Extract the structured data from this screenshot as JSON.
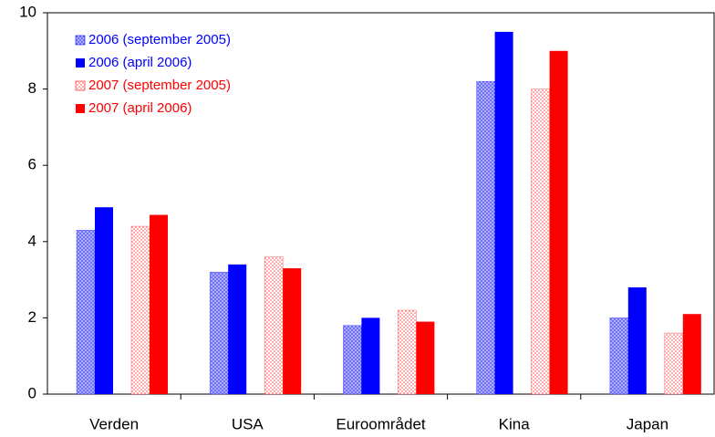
{
  "chart_data": {
    "type": "bar",
    "categories": [
      "Verden",
      "USA",
      "Euroområdet",
      "Kina",
      "Japan"
    ],
    "series": [
      {
        "name": "2006 (september 2005)",
        "color": "#0000ff",
        "pattern": "crosshatch",
        "values": [
          4.3,
          3.2,
          1.8,
          8.2,
          2.0
        ]
      },
      {
        "name": "2006 (april 2006)",
        "color": "#0000ff",
        "pattern": "solid",
        "values": [
          4.9,
          3.4,
          2.0,
          9.5,
          2.8
        ]
      },
      {
        "name": "2007 (september 2005)",
        "color": "#ff0000",
        "pattern": "dots",
        "values": [
          4.4,
          3.6,
          2.2,
          8.0,
          1.6
        ]
      },
      {
        "name": "2007 (april 2006)",
        "color": "#ff0000",
        "pattern": "solid",
        "values": [
          4.7,
          3.3,
          1.9,
          9.0,
          2.1
        ]
      }
    ],
    "ylim": [
      0,
      10
    ],
    "yticks": [
      0,
      2,
      4,
      6,
      8,
      10
    ],
    "grid": false,
    "legend": "top-left"
  }
}
